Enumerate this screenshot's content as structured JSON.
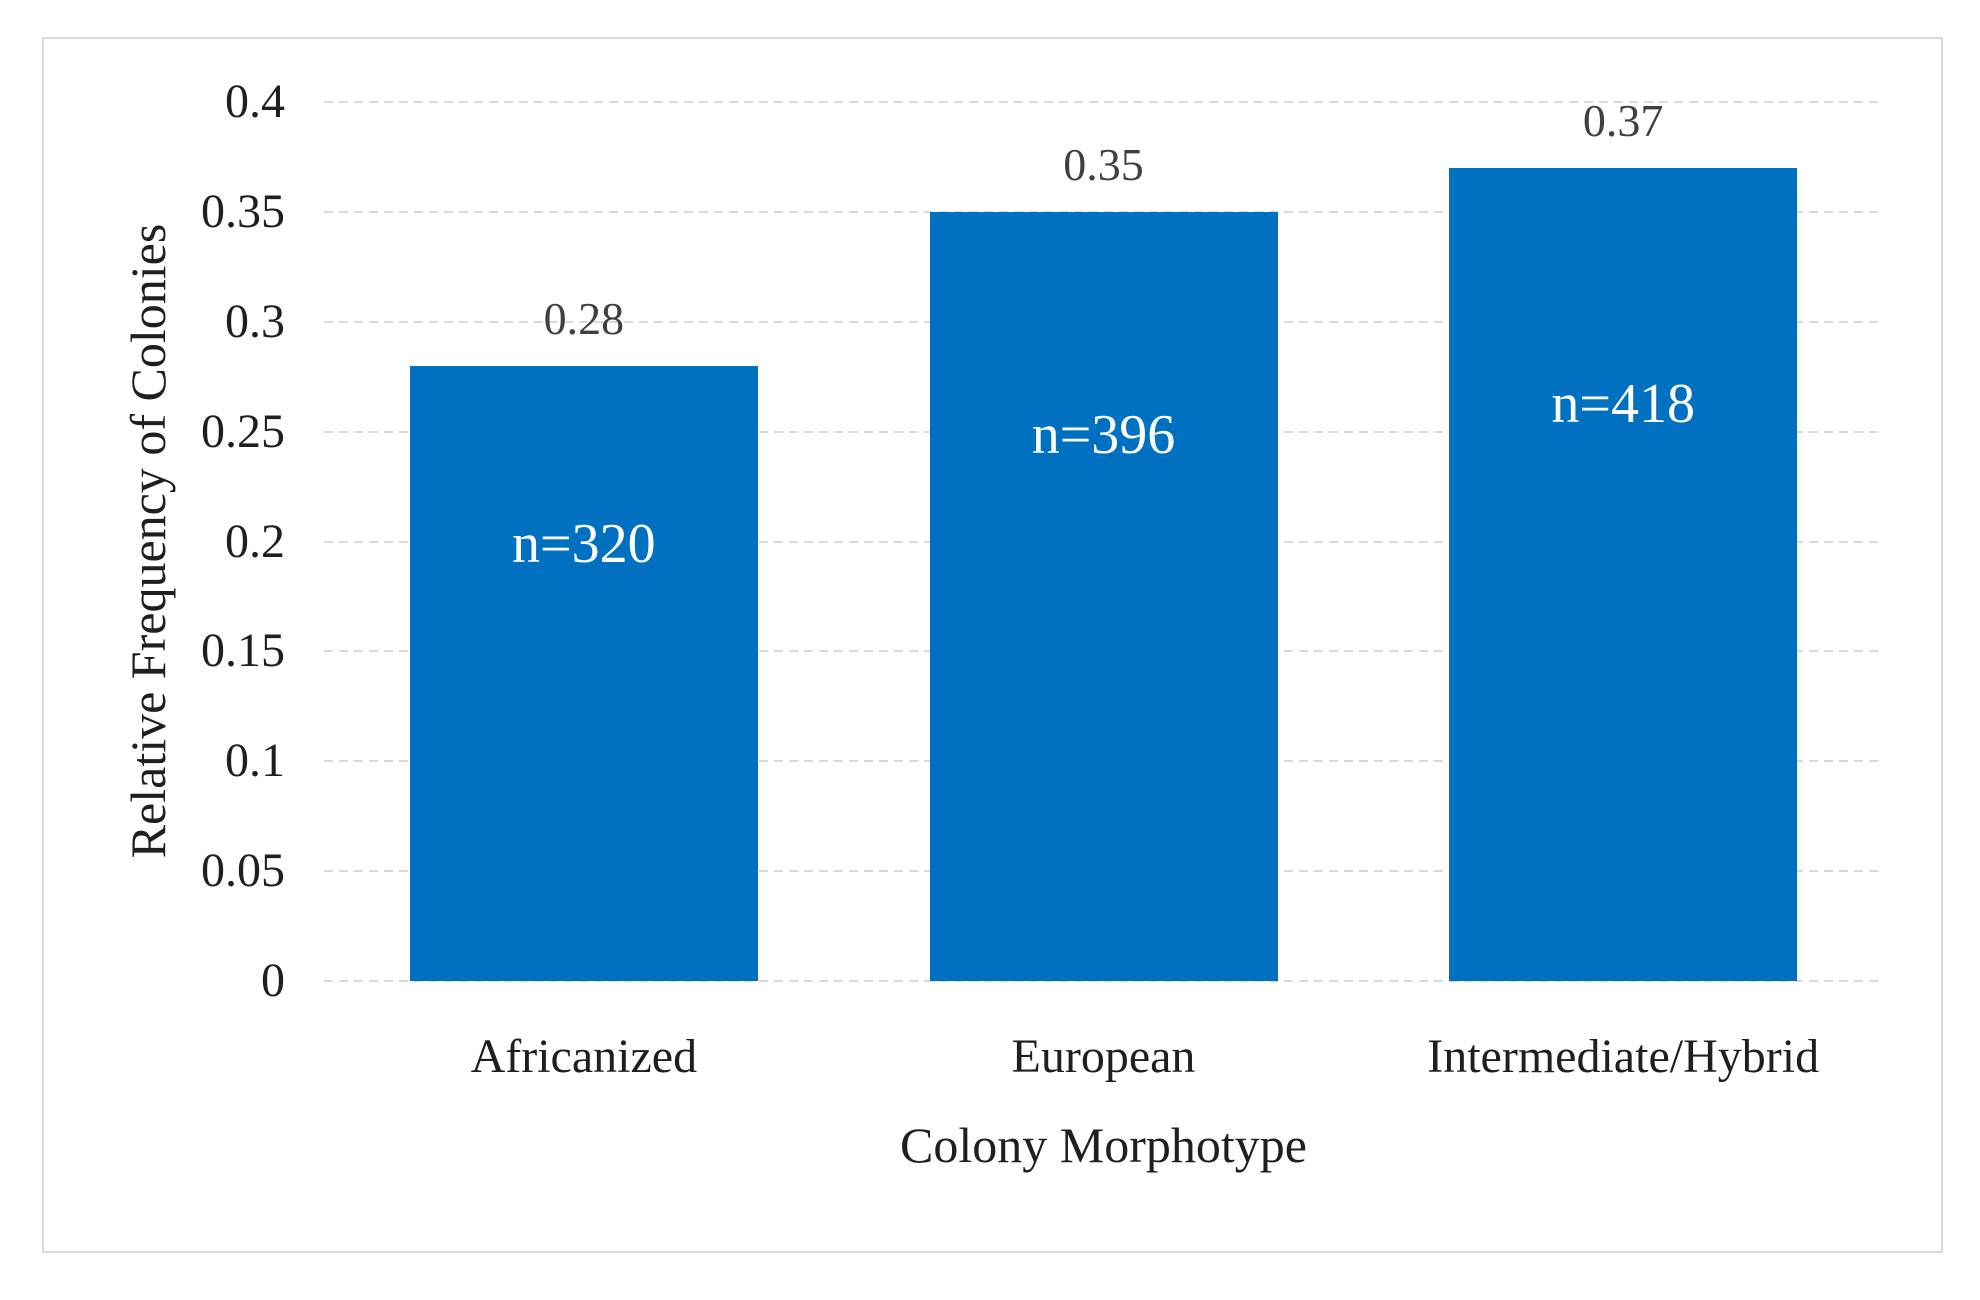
{
  "chart_data": {
    "type": "bar",
    "title": "",
    "categories": [
      "Africanized",
      "European",
      "Intermediate/Hybrid"
    ],
    "values": [
      0.28,
      0.35,
      0.37
    ],
    "value_labels": [
      "0.28",
      "0.35",
      "0.37"
    ],
    "bar_inner_labels": [
      "n=320",
      "n=396",
      "n=418"
    ],
    "xlabel": "Colony Morphotype",
    "ylabel": "Relative Frequency of Colonies",
    "ylim": [
      0,
      0.4
    ],
    "yticks": [
      0,
      0.05,
      0.1,
      0.15,
      0.2,
      0.25,
      0.3,
      0.35,
      0.4
    ],
    "ytick_labels": [
      "0",
      "0.05",
      "0.1",
      "0.15",
      "0.2",
      "0.25",
      "0.3",
      "0.35",
      "0.4"
    ],
    "grid": "horizontal-dashed",
    "legend": "none",
    "colors": {
      "bar_fill": "#0070C0",
      "bar_inner_label_text": "#FFFFFF",
      "value_label_text": "#404040",
      "axis_text": "#1F1F1F",
      "gridline": "#D9D9D9",
      "frame_border": "#D9D9D9",
      "background": "#FFFFFF"
    }
  }
}
